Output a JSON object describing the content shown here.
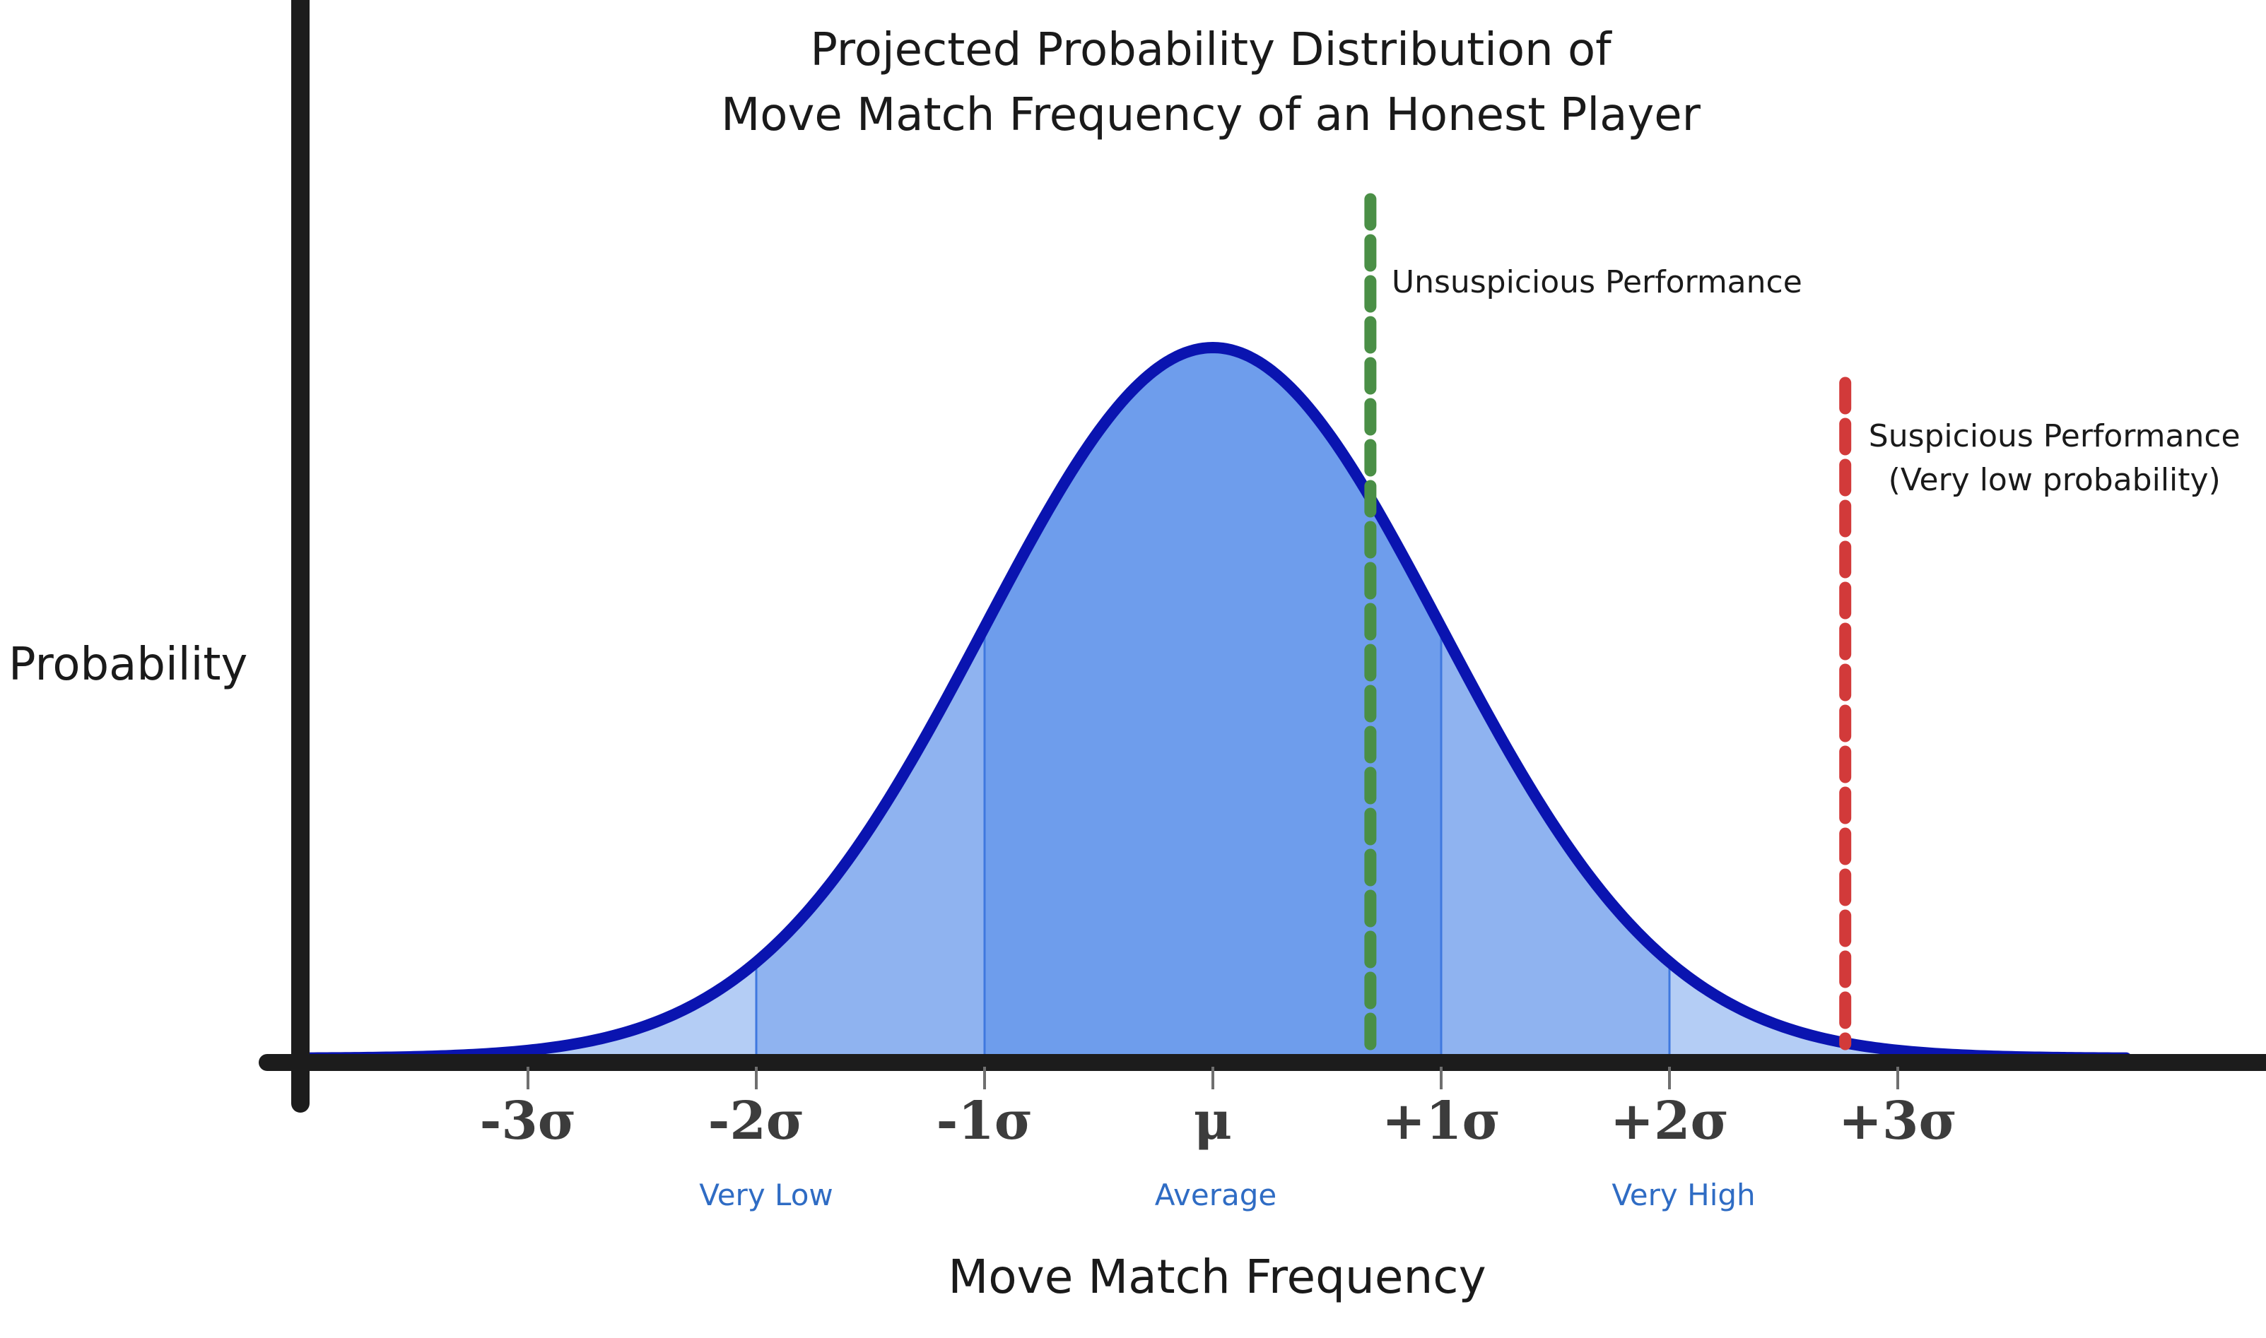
{
  "chart_data": {
    "type": "area",
    "title_lines": [
      "Projected Probability Distribution of",
      "Move Match Frequency of an Honest Player"
    ],
    "xlabel": "Move Match Frequency",
    "ylabel": "Probability",
    "x_unit": "standard deviations from the mean",
    "xlim": [
      -4.0,
      4.0
    ],
    "distribution": {
      "kind": "normal",
      "mean": 0,
      "sd": 1
    },
    "xticks": [
      {
        "x": -3,
        "label": "-3σ"
      },
      {
        "x": -2,
        "label": "-2σ"
      },
      {
        "x": -1,
        "label": "-1σ"
      },
      {
        "x": 0,
        "label": "μ"
      },
      {
        "x": 1,
        "label": "+1σ"
      },
      {
        "x": 2,
        "label": "+2σ"
      },
      {
        "x": 3,
        "label": "+3σ"
      }
    ],
    "sublabels": [
      {
        "x": -2,
        "label": "Very Low"
      },
      {
        "x": 0,
        "label": "Average"
      },
      {
        "x": 2,
        "label": "Very High"
      }
    ],
    "bands": [
      {
        "from": -4,
        "to": -2,
        "color": "#b4cdf5"
      },
      {
        "from": -2,
        "to": -1,
        "color": "#8fb3f0"
      },
      {
        "from": -1,
        "to": 1,
        "color": "#6e9dec"
      },
      {
        "from": 1,
        "to": 2,
        "color": "#8fb3f0"
      },
      {
        "from": 2,
        "to": 4,
        "color": "#b4cdf5"
      }
    ],
    "markers": [
      {
        "x": 0.69,
        "lines": [
          "Unsuspicious Performance"
        ],
        "color": "#4a8f46",
        "label_align": "left"
      },
      {
        "x": 2.77,
        "lines": [
          "Suspicious Performance",
          "(Very low probability)"
        ],
        "color": "#d23a3a",
        "label_align": "center"
      }
    ],
    "colors": {
      "curve": "#0a14b0",
      "band_divider": "#3f78df",
      "axis": "#1c1c1c",
      "tick_label": "#3c3c3c",
      "sublabel": "#2f6cc4",
      "text": "#1a1a1a"
    }
  }
}
